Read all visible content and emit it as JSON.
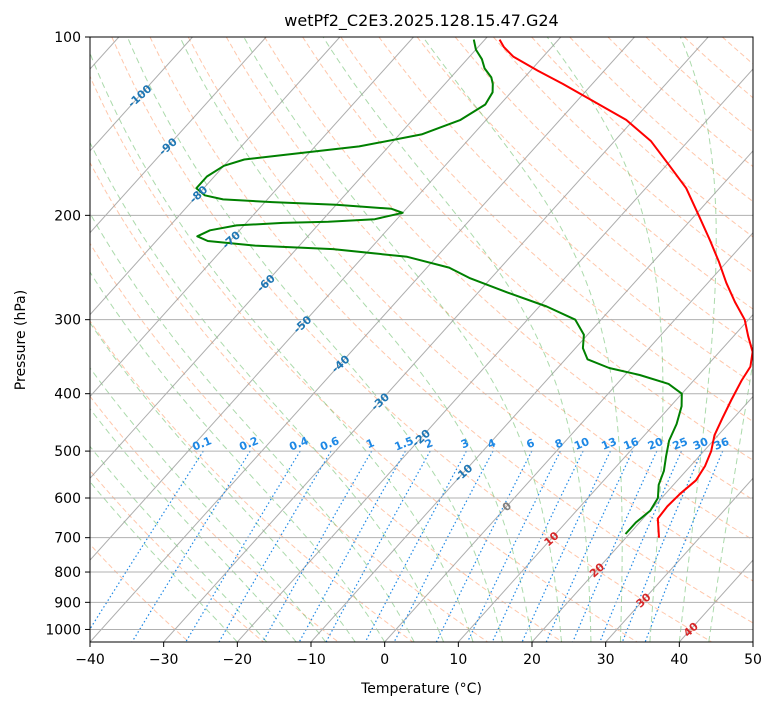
{
  "chart_data": {
    "type": "line",
    "title": "wetPf2_C2E3.2025.128.15.47.G24",
    "xlabel": "Temperature (°C)",
    "ylabel": "Pressure (hPa)",
    "xlim": [
      -40,
      50
    ],
    "ylim": [
      1050,
      100
    ],
    "y_scale": "log",
    "x_ticks": [
      "−40",
      "−30",
      "−20",
      "−10",
      "0",
      "10",
      "20",
      "30",
      "40",
      "50"
    ],
    "x_tick_values": [
      -40,
      -30,
      -20,
      -10,
      0,
      10,
      20,
      30,
      40,
      50
    ],
    "y_ticks": [
      "100",
      "200",
      "300",
      "400",
      "500",
      "600",
      "700",
      "800",
      "900",
      "1000"
    ],
    "y_tick_values": [
      100,
      200,
      300,
      400,
      500,
      600,
      700,
      800,
      900,
      1000
    ],
    "grid": true,
    "series": [
      {
        "role": "temperature",
        "color": "#ff0000",
        "points": [
          [
            700,
            24.5
          ],
          [
            650,
            22.0
          ],
          [
            620,
            21.8
          ],
          [
            590,
            22.0
          ],
          [
            560,
            22.5
          ],
          [
            530,
            22.0
          ],
          [
            500,
            21.0
          ],
          [
            470,
            19.5
          ],
          [
            440,
            18.5
          ],
          [
            410,
            17.5
          ],
          [
            380,
            16.5
          ],
          [
            360,
            16.0
          ],
          [
            340,
            14.5
          ],
          [
            320,
            12.0
          ],
          [
            300,
            9.5
          ],
          [
            280,
            6.0
          ],
          [
            260,
            2.5
          ],
          [
            240,
            -1.0
          ],
          [
            220,
            -5.0
          ],
          [
            200,
            -9.5
          ],
          [
            180,
            -14.5
          ],
          [
            165,
            -19.5
          ],
          [
            150,
            -25.0
          ],
          [
            138,
            -31.0
          ],
          [
            128,
            -38.0
          ],
          [
            120,
            -44.0
          ],
          [
            114,
            -49.0
          ],
          [
            108,
            -54.0
          ],
          [
            104,
            -56.5
          ],
          [
            101,
            -58.0
          ]
        ]
      },
      {
        "role": "dewpoint",
        "color": "#008000",
        "points": [
          [
            690,
            19.5
          ],
          [
            660,
            19.5
          ],
          [
            630,
            20.0
          ],
          [
            600,
            19.5
          ],
          [
            570,
            18.0
          ],
          [
            540,
            17.0
          ],
          [
            510,
            15.5
          ],
          [
            480,
            14.0
          ],
          [
            450,
            13.0
          ],
          [
            420,
            11.5
          ],
          [
            400,
            10.0
          ],
          [
            385,
            7.0
          ],
          [
            372,
            2.0
          ],
          [
            362,
            -3.0
          ],
          [
            350,
            -7.0
          ],
          [
            335,
            -9.0
          ],
          [
            318,
            -10.5
          ],
          [
            300,
            -13.5
          ],
          [
            285,
            -19.0
          ],
          [
            270,
            -26.0
          ],
          [
            255,
            -33.0
          ],
          [
            245,
            -37.0
          ],
          [
            235,
            -44.0
          ],
          [
            228,
            -55.0
          ],
          [
            225,
            -66.0
          ],
          [
            221,
            -73.0
          ],
          [
            217,
            -75.0
          ],
          [
            212,
            -74.0
          ],
          [
            208,
            -71.0
          ],
          [
            206,
            -65.0
          ],
          [
            205,
            -59.0
          ],
          [
            203,
            -53.0
          ],
          [
            198,
            -50.0
          ],
          [
            195,
            -52.0
          ],
          [
            192,
            -60.0
          ],
          [
            190,
            -69.0
          ],
          [
            188,
            -76.0
          ],
          [
            185,
            -79.0
          ],
          [
            180,
            -81.0
          ],
          [
            172,
            -81.0
          ],
          [
            165,
            -80.0
          ],
          [
            161,
            -78.0
          ],
          [
            158,
            -73.0
          ],
          [
            153,
            -64.0
          ],
          [
            146,
            -57.0
          ],
          [
            138,
            -53.5
          ],
          [
            130,
            -52.0
          ],
          [
            124,
            -52.5
          ],
          [
            120,
            -53.5
          ],
          [
            117,
            -54.5
          ],
          [
            113,
            -56.5
          ],
          [
            109,
            -58.0
          ],
          [
            105,
            -60.0
          ],
          [
            101,
            -61.5
          ]
        ]
      }
    ],
    "isotherm_labels": [
      "-100",
      "-90",
      "-80",
      "-70",
      "-60",
      "-50",
      "-40",
      "-30",
      "-20",
      "-10",
      "0",
      "10",
      "20",
      "30",
      "40"
    ],
    "isotherm_label_values": [
      -100,
      -90,
      -80,
      -70,
      -60,
      -50,
      -40,
      -30,
      -20,
      -10,
      0,
      10,
      20,
      30,
      40
    ],
    "isotherm_label_colors": {
      "negative": "#1f77b4",
      "zero": "#808080",
      "positive": "#d62728"
    },
    "mixing_ratio_labels": [
      "0.1",
      "0.2",
      "0.4",
      "0.6",
      "1",
      "1.5",
      "2",
      "3",
      "4",
      "6",
      "8",
      "10",
      "13",
      "16",
      "20",
      "25",
      "30",
      "36"
    ],
    "mixing_ratio_values": [
      0.1,
      0.2,
      0.4,
      0.6,
      1,
      1.5,
      2,
      3,
      4,
      6,
      8,
      10,
      13,
      16,
      20,
      25,
      30,
      36
    ],
    "mixing_ratio_label_pressure": 500,
    "line_colors": {
      "isotherm": "#999999",
      "dry_adiabat": "#ff9966",
      "moist_adiabat": "#66bb66",
      "mixing_ratio": "#1e88e5",
      "mixing_ratio_label": "#1e88e5",
      "grid": "#b0b0b0"
    }
  }
}
